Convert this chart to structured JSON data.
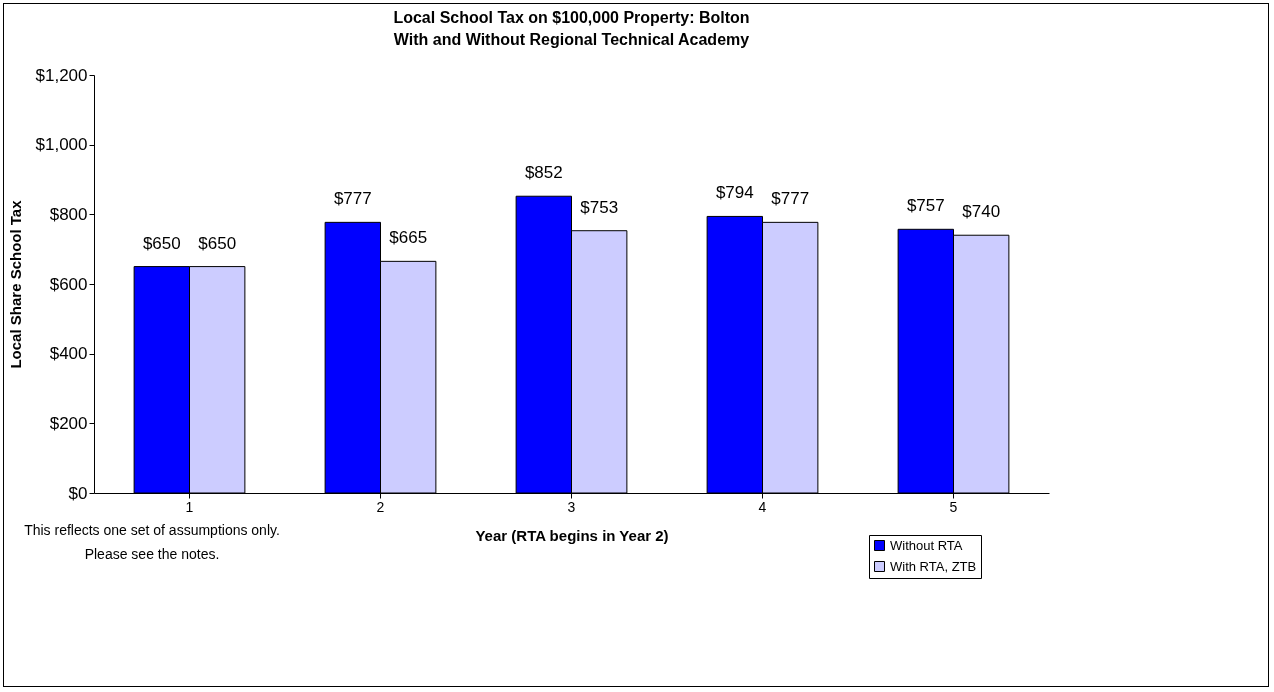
{
  "chart_data": {
    "type": "bar",
    "title": "Local School Tax on $100,000 Property:  Bolton",
    "subtitle": "With and Without Regional Technical Academy",
    "xlabel": "Year (RTA begins  in Year 2)",
    "ylabel": "Local Share School Tax",
    "categories": [
      "1",
      "2",
      "3",
      "4",
      "5"
    ],
    "series": [
      {
        "name": "Without RTA",
        "color": "#0000ff",
        "values": [
          650,
          777,
          852,
          794,
          757
        ],
        "value_labels": [
          "$650",
          "$777",
          "$852",
          "$794",
          "$757"
        ]
      },
      {
        "name": "With RTA, ZTB",
        "color": "#ccccff",
        "values": [
          650,
          665,
          753,
          777,
          740
        ],
        "value_labels": [
          "$650",
          "$665",
          "$753",
          "$777",
          "$740"
        ]
      }
    ],
    "ylim": [
      0,
      1200
    ],
    "yticks": [
      {
        "value": 0,
        "label": "$0"
      },
      {
        "value": 200,
        "label": "$200"
      },
      {
        "value": 400,
        "label": "$400"
      },
      {
        "value": 600,
        "label": "$600"
      },
      {
        "value": 800,
        "label": "$800"
      },
      {
        "value": 1000,
        "label": "$1,000"
      },
      {
        "value": 1200,
        "label": "$1,200"
      }
    ],
    "grid": false,
    "legend": "bottom right",
    "annotations": [
      "This reflects one set of assumptions only.",
      "Please see the notes."
    ]
  }
}
